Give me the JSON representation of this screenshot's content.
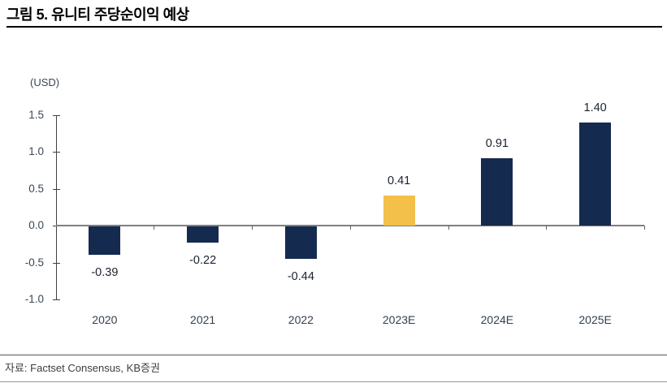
{
  "header": {
    "title": "그림 5. 유니티 주당순이익 예상"
  },
  "chart_data": {
    "type": "bar",
    "title": "그림 5. 유니티 주당순이익 예상",
    "unit_label": "(USD)",
    "xlabel": "",
    "ylabel": "(USD)",
    "categories": [
      "2020",
      "2021",
      "2022",
      "2023E",
      "2024E",
      "2025E"
    ],
    "values": [
      -0.39,
      -0.22,
      -0.44,
      0.41,
      0.91,
      1.4
    ],
    "value_labels": [
      "-0.39",
      "-0.22",
      "-0.44",
      "0.41",
      "0.91",
      "1.40"
    ],
    "bar_color_keys": [
      "navy",
      "navy",
      "navy",
      "gold",
      "navy",
      "navy"
    ],
    "highlight_category": "2023E",
    "yticks": [
      1.5,
      1.0,
      0.5,
      0.0,
      -0.5,
      -1.0
    ],
    "ytick_labels": [
      "1.5",
      "1.0",
      "0.5",
      "0.0",
      "-0.5",
      "-1.0"
    ],
    "ylim": [
      -1.0,
      1.5
    ],
    "grid": false,
    "legend": "none",
    "colors": {
      "navy": "#152a4f",
      "gold": "#f3c04a"
    }
  },
  "footer": {
    "source": "자료: Factset Consensus, KB증권"
  }
}
